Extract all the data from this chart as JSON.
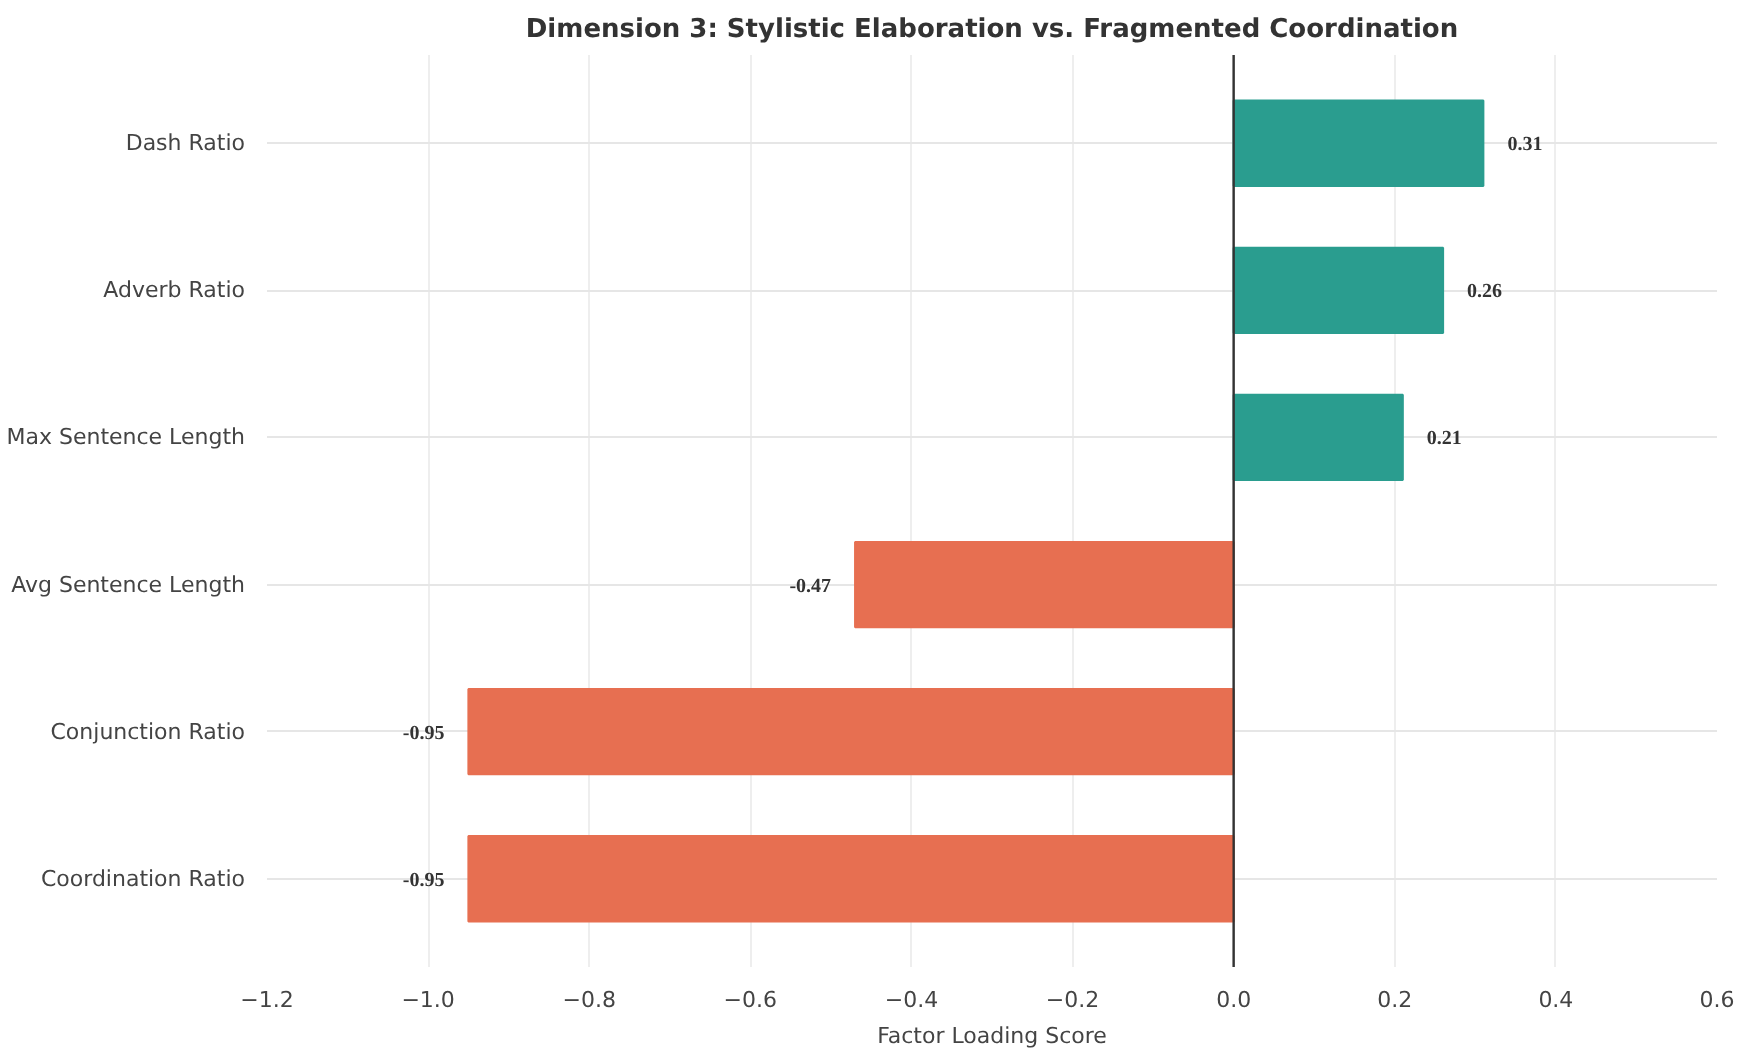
{
  "chart_data": {
    "type": "bar",
    "orientation": "horizontal",
    "title": "Dimension 3: Stylistic Elaboration vs. Fragmented Coordination",
    "xlabel": "Factor Loading Score",
    "categories": [
      "Dash Ratio",
      "Adverb Ratio",
      "Max Sentence Length",
      "Avg Sentence Length",
      "Conjunction Ratio",
      "Coordination Ratio"
    ],
    "values": [
      0.31,
      0.26,
      0.21,
      -0.47,
      -0.95,
      -0.95
    ],
    "colors": [
      "#2a9d8f",
      "#2a9d8f",
      "#2a9d8f",
      "#e76f51",
      "#e76f51",
      "#e76f51"
    ],
    "xlim": [
      -1.2,
      0.6
    ],
    "xticks": [
      {
        "value": -1.2,
        "label": "−1.2"
      },
      {
        "value": -1.0,
        "label": "−1.0"
      },
      {
        "value": -0.8,
        "label": "−0.8"
      },
      {
        "value": -0.6,
        "label": "−0.6"
      },
      {
        "value": -0.4,
        "label": "−0.4"
      },
      {
        "value": -0.2,
        "label": "−0.2"
      },
      {
        "value": 0.0,
        "label": "0.0"
      },
      {
        "value": 0.2,
        "label": "0.2"
      },
      {
        "value": 0.4,
        "label": "0.4"
      },
      {
        "value": 0.6,
        "label": "0.6"
      }
    ],
    "ref_lines": [
      {
        "axis": "x",
        "value": 0,
        "color": "#333333"
      }
    ],
    "data_labels": true,
    "grid": true
  }
}
